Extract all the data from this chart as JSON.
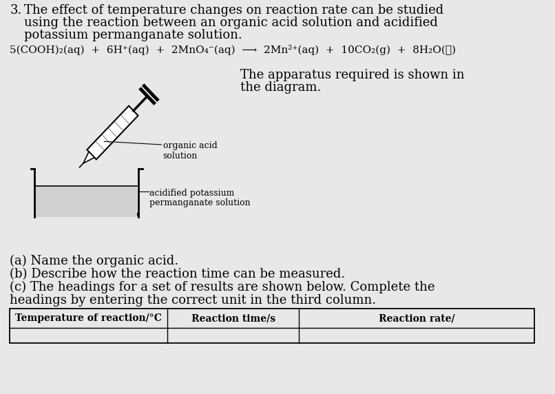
{
  "bg_color": "#e8e8e8",
  "text_color": "#000000",
  "question_number": "3.",
  "intro_line1": "The effect of temperature changes on reaction rate can be studied",
  "intro_line2": "using the reaction between an organic acid solution and acidified",
  "intro_line3": "potassium permanganate solution.",
  "equation_raw": "5(COOH)₂(aq)  +  6H⁺(aq)  +  2MnO₄⁻(aq)  ⟶  2Mn²⁺(aq)  +  10CO₂(g)  +  8H₂O(ℓ)",
  "apparatus_line1": "The apparatus required is shown in",
  "apparatus_line2": "the diagram.",
  "label_organic1": "organic acid",
  "label_organic2": "solution",
  "label_acid1": "acidified potassium",
  "label_acid2": "permanganate solution",
  "part_a": "(a) Name the organic acid.",
  "part_b": "(b) Describe how the reaction time can be measured.",
  "part_c1": "(c) The headings for a set of results are shown below. Complete the",
  "part_c2": "headings by entering the correct unit in the third column.",
  "table_headers": [
    "Temperature of reaction/°C",
    "Reaction time/s",
    "Reaction rate/"
  ],
  "font_size_main": 13,
  "font_size_eq": 11,
  "font_size_label": 9,
  "font_size_table": 10
}
